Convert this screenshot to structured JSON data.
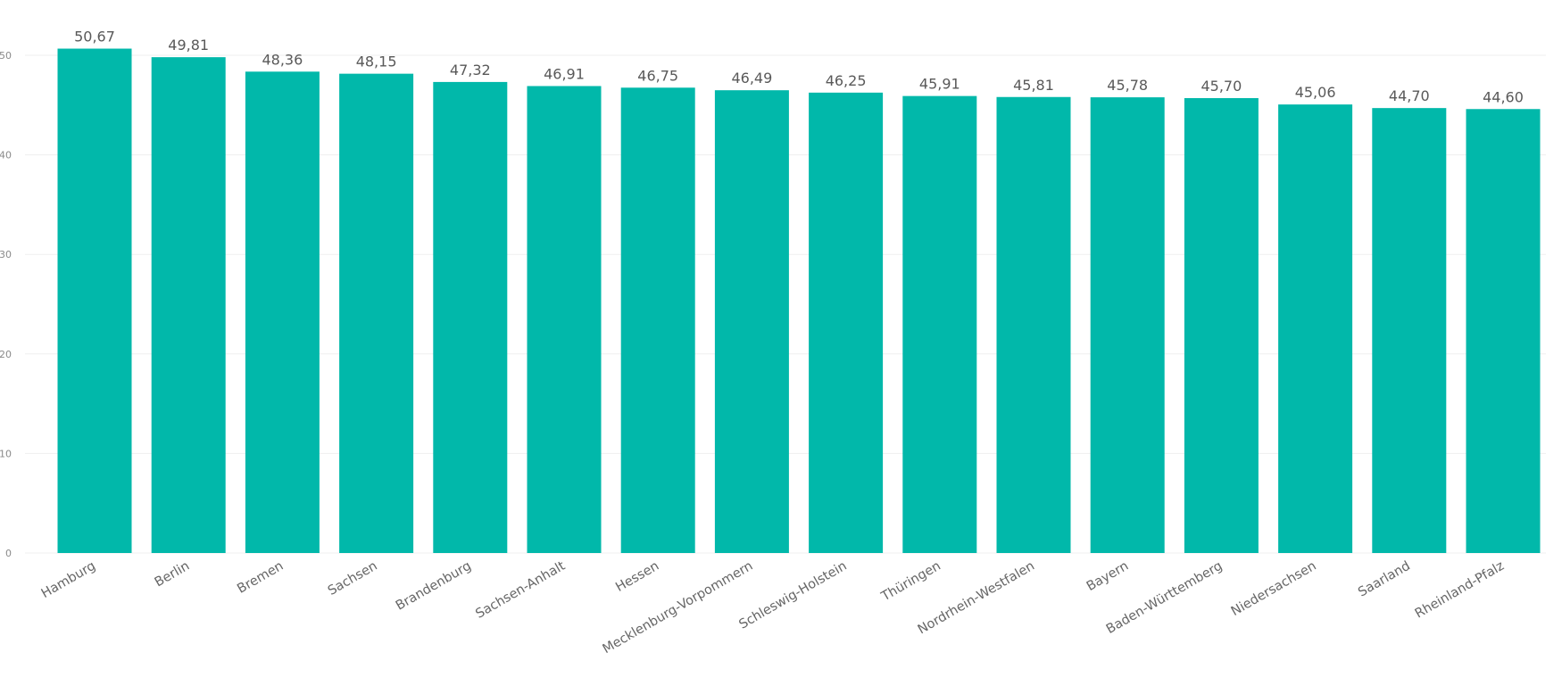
{
  "chart_data": {
    "type": "bar",
    "title": "",
    "xlabel": "",
    "ylabel": "",
    "ylim": [
      0,
      50
    ],
    "yticks": [
      "0",
      "10",
      "20",
      "30",
      "40",
      "50"
    ],
    "grid": true,
    "legend": "none",
    "bar_color": "#01B8AA",
    "categories": [
      "Hamburg",
      "Berlin",
      "Bremen",
      "Sachsen",
      "Brandenburg",
      "Sachsen-Anhalt",
      "Hessen",
      "Mecklenburg-Vorpommern",
      "Schleswig-Holstein",
      "Thüringen",
      "Nordrhein-Westfalen",
      "Bayern",
      "Baden-Württemberg",
      "Niedersachsen",
      "Saarland",
      "Rheinland-Pfalz"
    ],
    "values": [
      50.67,
      49.81,
      48.36,
      48.15,
      47.32,
      46.91,
      46.75,
      46.49,
      46.25,
      45.91,
      45.81,
      45.78,
      45.7,
      45.06,
      44.7,
      44.6
    ],
    "data_labels": [
      "50,67",
      "49,81",
      "48,36",
      "48,15",
      "47,32",
      "46,91",
      "46,75",
      "46,49",
      "46,25",
      "45,91",
      "45,81",
      "45,78",
      "45,70",
      "45,06",
      "44,70",
      "44,60"
    ]
  }
}
